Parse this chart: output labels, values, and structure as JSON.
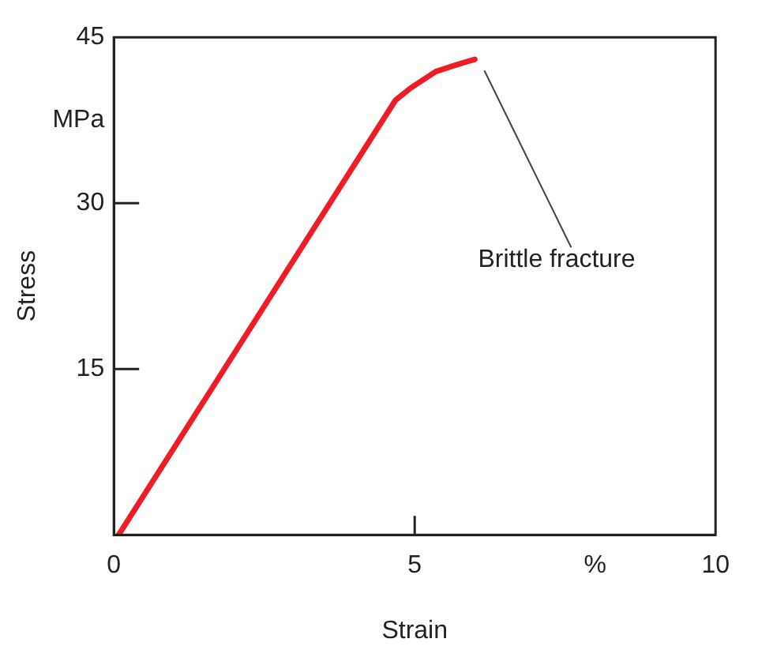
{
  "chart_data": {
    "type": "line",
    "xlabel": "Strain",
    "ylabel": "Stress",
    "x": [
      0.08,
      4.68,
      4.93,
      5.35,
      5.69,
      6.0
    ],
    "series": [
      {
        "color": "#ee1c25",
        "values": [
          0,
          39.3,
          40.4,
          41.9,
          42.5,
          43.0
        ]
      }
    ],
    "xlim": [
      0,
      10
    ],
    "ylim": [
      0,
      45
    ],
    "xticks": [
      0,
      5,
      {
        "value": 8,
        "label": "%"
      },
      10
    ],
    "yticks": [
      15,
      30,
      {
        "value": 37.5,
        "label": "MPa"
      },
      45
    ],
    "annotations": [
      "Brittle fracture"
    ],
    "grid": false,
    "legend": false,
    "marker": "none",
    "line_style": "solid"
  }
}
